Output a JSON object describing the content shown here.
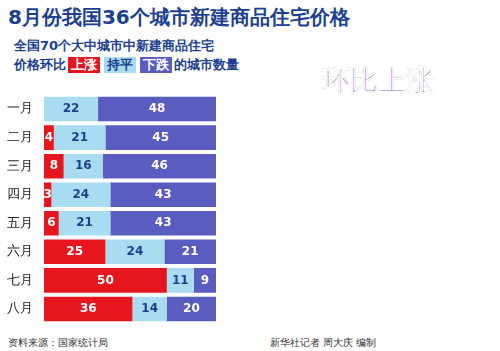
{
  "chart_data": {
    "type": "bar",
    "orientation": "horizontal",
    "stacked": true,
    "title": "8月份我国36个城市新建商品住宅价格",
    "subtitle": [
      "全国70个大中城市中新建商品住宅",
      "价格环比",
      "的城市数量"
    ],
    "annotations": [
      "环比上涨"
    ],
    "source": "资料来源：国家统计局",
    "credit": "新华社记者 周大庆 编制",
    "categories": [
      "一月",
      "二月",
      "三月",
      "四月",
      "五月",
      "六月",
      "七月",
      "八月"
    ],
    "series": [
      {
        "name": "上涨",
        "color": "#e5161d",
        "values": [
          0,
          4,
          8,
          3,
          6,
          25,
          50,
          36
        ]
      },
      {
        "name": "持平",
        "color": "#a8dcf0",
        "values": [
          22,
          21,
          16,
          24,
          21,
          24,
          11,
          14
        ]
      },
      {
        "name": "下跌",
        "color": "#5a5cc0",
        "values": [
          48,
          45,
          46,
          43,
          43,
          21,
          9,
          20
        ]
      }
    ],
    "xlim": [
      0,
      70
    ],
    "grid": false,
    "legend": "top-left",
    "data_labels": true,
    "tick_labels": "y"
  }
}
